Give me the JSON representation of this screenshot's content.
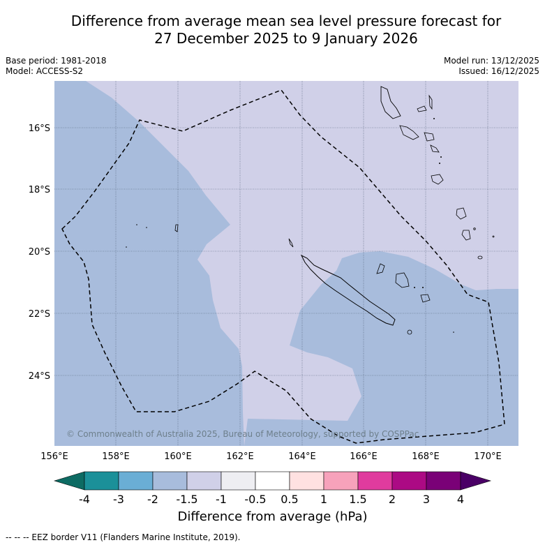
{
  "title_line1": "Difference from average mean sea level pressure forecast for",
  "title_line2": "27 December 2025 to 9 January 2026",
  "base_period": "Base period: 1981-2018",
  "model": "Model: ACCESS-S2",
  "model_run": "Model run: 13/12/2025",
  "issued": "Issued: 16/12/2025",
  "copyright": "© Commonwealth of Australia 2025, Bureau of Meteorology, supported by COSPPac",
  "lon_labels": [
    "156°E",
    "158°E",
    "160°E",
    "162°E",
    "164°E",
    "166°E",
    "168°E",
    "170°E"
  ],
  "lat_labels": [
    "16°S",
    "18°S",
    "20°S",
    "22°S",
    "24°S"
  ],
  "colorbar": {
    "title": "Difference from average (hPa)",
    "tick_labels": [
      "-4",
      "-3",
      "-2",
      "-1.5",
      "-1",
      "-0.5",
      "0.5",
      "1",
      "1.5",
      "2",
      "3",
      "4"
    ],
    "colors": [
      "#1b9099",
      "#6aaed5",
      "#a8bcdc",
      "#d0d0e8",
      "#eeeef2",
      "#ffffff",
      "#ffe1e1",
      "#f7a2bb",
      "#e03b9e",
      "#ac0a84",
      "#7a0177"
    ],
    "under_color": "#0d6b63",
    "over_color": "#4a0066"
  },
  "map_colors": {
    "light_lavender": "#d0d0e8",
    "blue": "#a8bcdc"
  },
  "legend_footnote": "--  --  -- EEZ border V11 (Flanders Marine Institute, 2019).",
  "chart_data": {
    "type": "heatmap",
    "title": "Difference from average mean sea level pressure forecast for 27 December 2025 to 9 January 2026",
    "variable": "Mean sea level pressure anomaly",
    "units": "hPa",
    "lon_range": [
      156,
      171
    ],
    "lat_range": [
      -26.3,
      -14.5
    ],
    "shaded_classes_present": [
      "-2 to -1.5",
      "-1.5 to -1"
    ],
    "colorbar_levels": [
      -4,
      -3,
      -2,
      -1.5,
      -1,
      -0.5,
      0.5,
      1,
      1.5,
      2,
      3,
      4
    ]
  }
}
